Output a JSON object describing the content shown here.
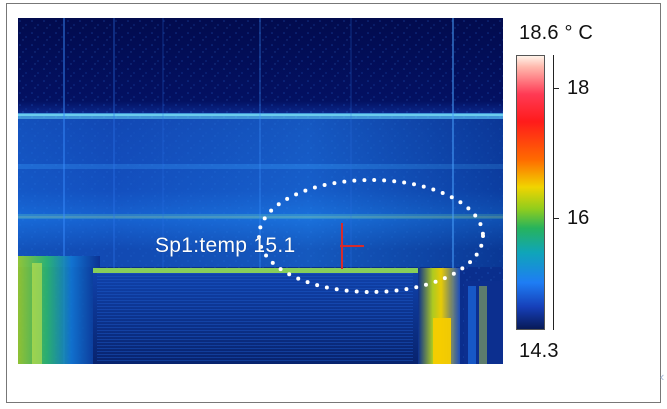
{
  "image": {
    "spot_label": "Sp1:temp 15.1",
    "scale_max_label": "18.6 ° C",
    "scale_min_label": "14.3",
    "tick_18": "18",
    "tick_16": "16"
  },
  "colors": {
    "background": "#030b55",
    "highlight_dots": "#ffffff",
    "crosshair": "#d72b2b"
  },
  "icons": {
    "marker": "crosshair-icon",
    "region": "dotted-ellipse"
  }
}
